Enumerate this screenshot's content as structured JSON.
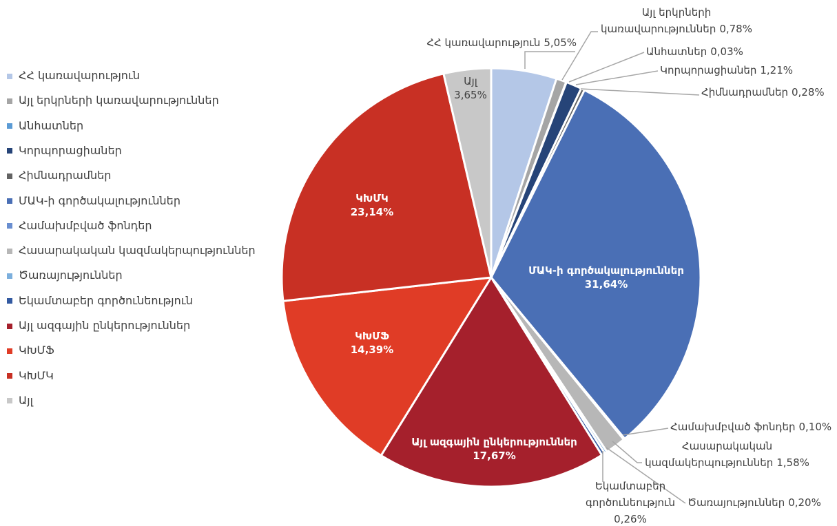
{
  "chart_data": {
    "type": "pie",
    "categories": [
      "ՀՀ կառավարություն",
      "Այլ երկրների կառավարություններ",
      "Անհատներ",
      "Կորպորացիաներ",
      "Հիմնադրամներ",
      "ՄԱԿ-ի գործակալություններ",
      "Համախմբված ֆոնդեր",
      "Հասարակական կազմակերպություններ",
      "Ծառայություններ",
      "Եկամտաբեր գործունեություն",
      "Այլ ազգային ընկերություններ",
      "ԿԽՄՖ",
      "ԿԽՄԿ",
      "Այլ"
    ],
    "values": [
      5.05,
      0.78,
      0.03,
      1.21,
      0.28,
      31.64,
      0.1,
      1.58,
      0.2,
      0.26,
      17.67,
      14.39,
      23.14,
      3.65
    ],
    "value_labels": [
      "5,05%",
      "0,78%",
      "0,03%",
      "1,21%",
      "0,28%",
      "31,64%",
      "0,10%",
      "1,58%",
      "0,20%",
      "0,26%",
      "17,67%",
      "14,39%",
      "23,14%",
      "3,65%"
    ],
    "colors": [
      "#b4c7e7",
      "#a5a5a5",
      "#5b9bd5",
      "#264478",
      "#636363",
      "#4a6fb5",
      "#698ed0",
      "#b7b7b7",
      "#7cafdd",
      "#335aa1",
      "#a5202c",
      "#e03c26",
      "#c83024",
      "#c8c8c8"
    ],
    "legend": "left"
  }
}
